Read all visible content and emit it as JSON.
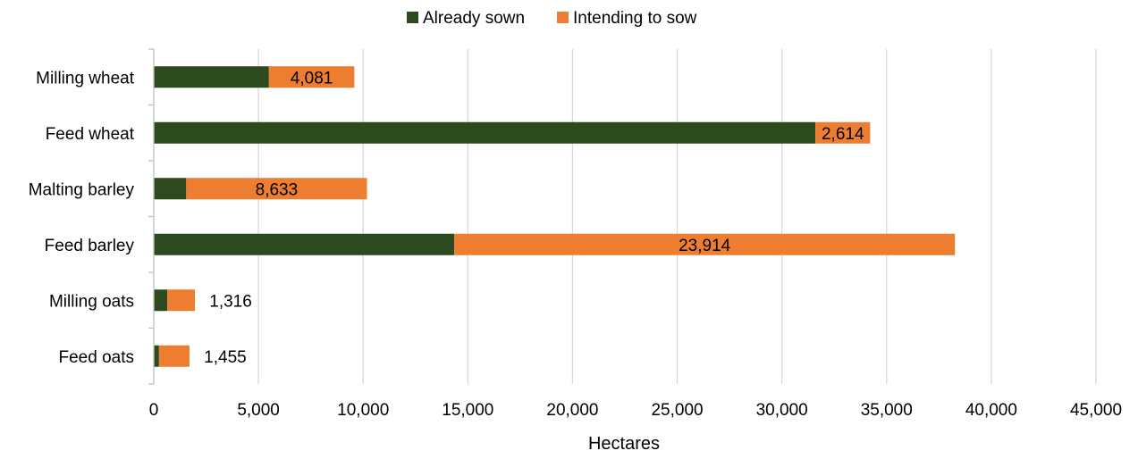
{
  "chart_data": {
    "type": "bar",
    "orientation": "horizontal",
    "stacked": true,
    "categories": [
      "Milling wheat",
      "Feed wheat",
      "Malting barley",
      "Feed barley",
      "Milling oats",
      "Feed oats"
    ],
    "series": [
      {
        "name": "Already sown",
        "color": "#2d4a1e",
        "values": [
          5500,
          31600,
          1550,
          14350,
          650,
          250
        ]
      },
      {
        "name": "Intending to sow",
        "color": "#ed7d31",
        "values": [
          4081,
          2614,
          8633,
          23914,
          1316,
          1455
        ]
      }
    ],
    "data_labels": [
      "4,081",
      "2,614",
      "8,633",
      "23,914",
      "1,316",
      "1,455"
    ],
    "xlabel": "Hectares",
    "ylabel": "",
    "xlim": [
      0,
      45000
    ],
    "x_ticks": [
      0,
      5000,
      10000,
      15000,
      20000,
      25000,
      30000,
      35000,
      40000,
      45000
    ],
    "x_tick_labels": [
      "0",
      "5,000",
      "10,000",
      "15,000",
      "20,000",
      "25,000",
      "30,000",
      "35,000",
      "40,000",
      "45,000"
    ],
    "grid": true,
    "legend_position": "top"
  }
}
